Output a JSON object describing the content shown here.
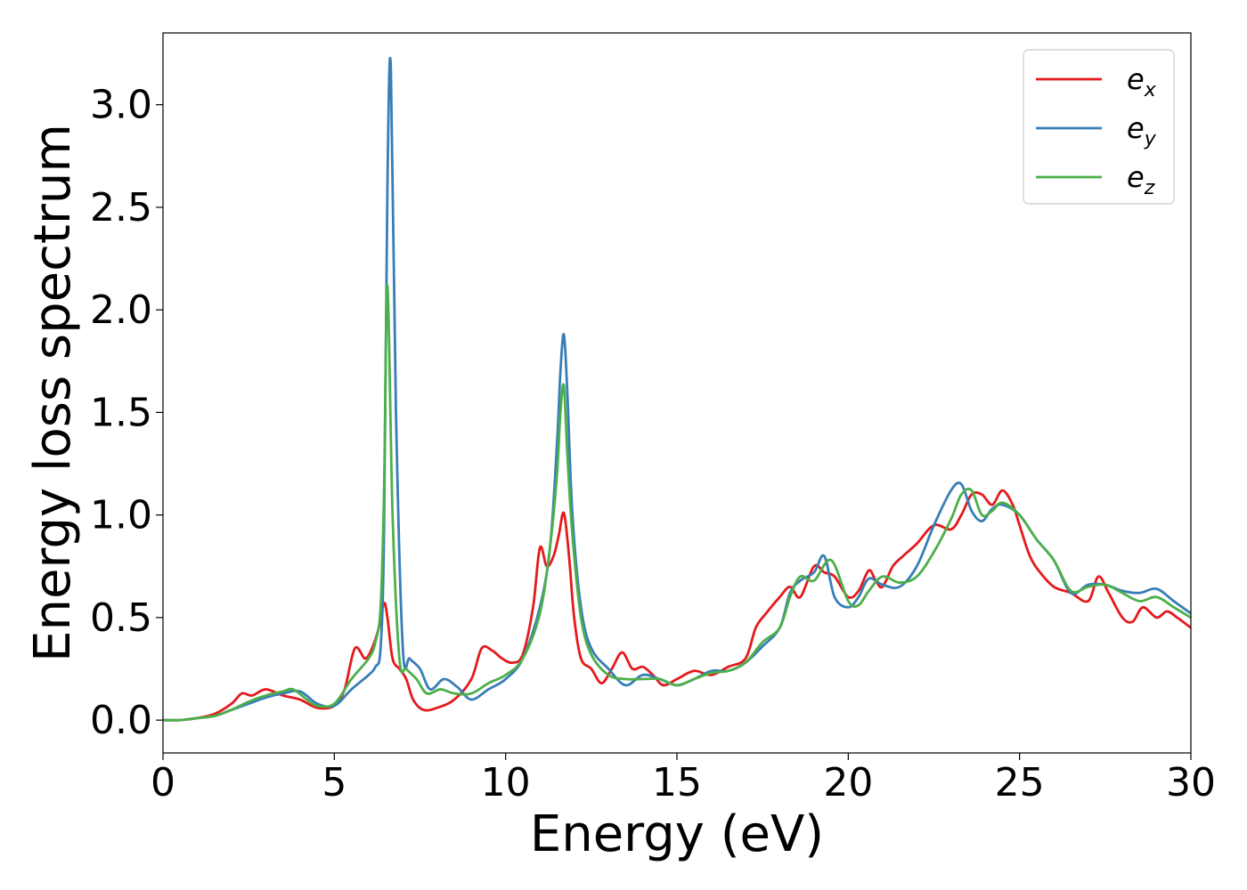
{
  "chart_data": {
    "type": "line",
    "title": "",
    "xlabel": "Energy (eV)",
    "ylabel": "Energy loss spectrum",
    "xlim": [
      0,
      30
    ],
    "ylim": [
      -0.16,
      3.35
    ],
    "xticks": [
      0,
      5,
      10,
      15,
      20,
      25,
      30
    ],
    "xtick_labels": [
      "0",
      "5",
      "10",
      "15",
      "20",
      "25",
      "30"
    ],
    "yticks": [
      0.0,
      0.5,
      1.0,
      1.5,
      2.0,
      2.5,
      3.0
    ],
    "ytick_labels": [
      "0.0",
      "0.5",
      "1.0",
      "1.5",
      "2.0",
      "2.5",
      "3.0"
    ],
    "grid": false,
    "legend_position": "top-right",
    "series": [
      {
        "name": "e_x",
        "legend_main": "e",
        "legend_sub": "x",
        "color": "#e41a1c",
        "x": [
          0,
          0.5,
          1,
          1.5,
          2,
          2.3,
          2.6,
          3,
          3.5,
          4,
          4.5,
          5,
          5.3,
          5.6,
          5.9,
          6.1,
          6.3,
          6.45,
          6.55,
          6.7,
          6.9,
          7.1,
          7.3,
          7.6,
          8,
          8.5,
          9,
          9.3,
          9.6,
          9.9,
          10.2,
          10.5,
          10.8,
          11,
          11.2,
          11.4,
          11.55,
          11.7,
          11.85,
          12,
          12.2,
          12.5,
          12.8,
          13.1,
          13.4,
          13.7,
          14,
          14.3,
          14.6,
          15,
          15.5,
          16,
          16.5,
          17,
          17.3,
          17.6,
          18,
          18.3,
          18.6,
          19,
          19.3,
          19.6,
          20,
          20.3,
          20.6,
          20.8,
          21,
          21.3,
          21.6,
          22,
          22.5,
          23,
          23.3,
          23.6,
          23.9,
          24.2,
          24.5,
          24.8,
          25,
          25.3,
          25.6,
          26,
          26.5,
          27,
          27.3,
          27.6,
          28,
          28.3,
          28.6,
          29,
          29.3,
          29.6,
          30
        ],
        "y": [
          0,
          0,
          0.01,
          0.03,
          0.08,
          0.13,
          0.12,
          0.15,
          0.12,
          0.1,
          0.06,
          0.07,
          0.15,
          0.35,
          0.3,
          0.35,
          0.45,
          0.57,
          0.5,
          0.3,
          0.25,
          0.2,
          0.1,
          0.05,
          0.06,
          0.1,
          0.2,
          0.35,
          0.34,
          0.3,
          0.28,
          0.32,
          0.55,
          0.84,
          0.75,
          0.8,
          0.9,
          1.01,
          0.8,
          0.5,
          0.3,
          0.25,
          0.18,
          0.25,
          0.33,
          0.25,
          0.26,
          0.22,
          0.17,
          0.2,
          0.24,
          0.22,
          0.26,
          0.3,
          0.45,
          0.52,
          0.6,
          0.65,
          0.6,
          0.75,
          0.72,
          0.7,
          0.6,
          0.63,
          0.73,
          0.68,
          0.65,
          0.75,
          0.8,
          0.86,
          0.95,
          0.93,
          1.0,
          1.1,
          1.1,
          1.05,
          1.12,
          1.05,
          0.95,
          0.8,
          0.72,
          0.65,
          0.62,
          0.58,
          0.7,
          0.62,
          0.5,
          0.48,
          0.55,
          0.5,
          0.53,
          0.5,
          0.45
        ]
      },
      {
        "name": "e_y",
        "legend_main": "e",
        "legend_sub": "y",
        "color": "#377eb8",
        "x": [
          0,
          0.5,
          1,
          1.5,
          2,
          2.5,
          3,
          3.5,
          4,
          4.5,
          5,
          5.5,
          6,
          6.2,
          6.35,
          6.45,
          6.55,
          6.65,
          6.8,
          7,
          7.2,
          7.5,
          7.8,
          8.2,
          8.6,
          9,
          9.5,
          10,
          10.5,
          11,
          11.3,
          11.5,
          11.6,
          11.7,
          11.8,
          11.95,
          12.2,
          12.5,
          13,
          13.5,
          14,
          14.5,
          15,
          15.5,
          16,
          16.5,
          17,
          17.5,
          18,
          18.3,
          18.6,
          19,
          19.3,
          19.6,
          20,
          20.3,
          20.6,
          21,
          21.5,
          22,
          22.5,
          23,
          23.3,
          23.6,
          23.9,
          24.2,
          24.5,
          25,
          25.5,
          26,
          26.5,
          27,
          27.5,
          28,
          28.5,
          29,
          29.5,
          30
        ],
        "y": [
          0,
          0,
          0.01,
          0.02,
          0.05,
          0.08,
          0.11,
          0.13,
          0.14,
          0.08,
          0.07,
          0.15,
          0.22,
          0.26,
          0.35,
          0.9,
          2.6,
          3.18,
          1.5,
          0.35,
          0.3,
          0.25,
          0.15,
          0.2,
          0.16,
          0.1,
          0.15,
          0.2,
          0.3,
          0.55,
          0.85,
          1.35,
          1.7,
          1.88,
          1.6,
          1.0,
          0.55,
          0.35,
          0.25,
          0.17,
          0.22,
          0.2,
          0.17,
          0.2,
          0.24,
          0.24,
          0.28,
          0.36,
          0.45,
          0.62,
          0.68,
          0.72,
          0.8,
          0.6,
          0.55,
          0.6,
          0.69,
          0.66,
          0.65,
          0.75,
          0.95,
          1.12,
          1.15,
          1.02,
          0.97,
          1.03,
          1.05,
          1.0,
          0.88,
          0.78,
          0.62,
          0.66,
          0.66,
          0.63,
          0.62,
          0.64,
          0.58,
          0.52
        ]
      },
      {
        "name": "e_z",
        "legend_main": "e",
        "legend_sub": "z",
        "color": "#4daf4a",
        "x": [
          0,
          0.5,
          1,
          1.5,
          2,
          2.5,
          3,
          3.5,
          3.8,
          4.2,
          4.5,
          5,
          5.5,
          6,
          6.2,
          6.35,
          6.45,
          6.55,
          6.7,
          6.9,
          7.1,
          7.4,
          7.7,
          8.1,
          8.5,
          9,
          9.5,
          10,
          10.5,
          11,
          11.3,
          11.5,
          11.6,
          11.7,
          11.8,
          11.95,
          12.2,
          12.5,
          13,
          13.5,
          14,
          14.5,
          15,
          15.5,
          16,
          16.5,
          17,
          17.5,
          18,
          18.3,
          18.6,
          19,
          19.5,
          20,
          20.3,
          20.6,
          21,
          21.5,
          22,
          22.5,
          23,
          23.3,
          23.6,
          23.9,
          24.2,
          24.5,
          25,
          25.5,
          26,
          26.5,
          27,
          27.5,
          28,
          28.5,
          29,
          29.5,
          30
        ],
        "y": [
          0,
          0,
          0.01,
          0.02,
          0.05,
          0.09,
          0.12,
          0.14,
          0.15,
          0.1,
          0.07,
          0.08,
          0.2,
          0.3,
          0.38,
          0.55,
          1.1,
          2.12,
          1.0,
          0.3,
          0.25,
          0.2,
          0.13,
          0.15,
          0.13,
          0.13,
          0.18,
          0.22,
          0.3,
          0.52,
          0.85,
          1.2,
          1.5,
          1.63,
          1.3,
          0.9,
          0.5,
          0.32,
          0.22,
          0.2,
          0.2,
          0.2,
          0.17,
          0.2,
          0.23,
          0.24,
          0.28,
          0.38,
          0.45,
          0.6,
          0.7,
          0.68,
          0.78,
          0.58,
          0.56,
          0.63,
          0.7,
          0.67,
          0.7,
          0.82,
          0.98,
          1.1,
          1.12,
          1.0,
          1.02,
          1.06,
          1.0,
          0.88,
          0.78,
          0.63,
          0.65,
          0.66,
          0.62,
          0.58,
          0.6,
          0.55,
          0.5
        ]
      }
    ]
  }
}
